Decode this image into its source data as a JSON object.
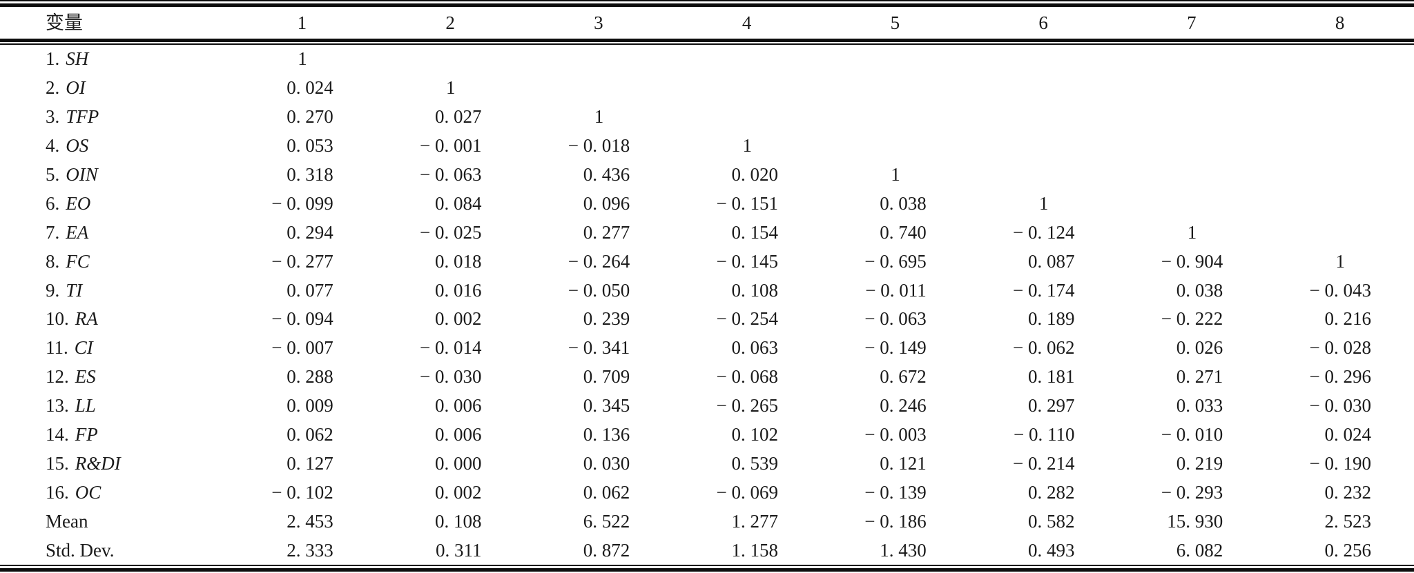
{
  "table": {
    "header": [
      "变量",
      "1",
      "2",
      "3",
      "4",
      "5",
      "6",
      "7",
      "8"
    ],
    "rows": [
      {
        "num": "1.",
        "name": "SH",
        "values": [
          "1",
          "",
          "",
          "",
          "",
          "",
          "",
          ""
        ]
      },
      {
        "num": "2.",
        "name": "OI",
        "values": [
          "0. 024",
          "1",
          "",
          "",
          "",
          "",
          "",
          ""
        ]
      },
      {
        "num": "3.",
        "name": "TFP",
        "values": [
          "0. 270",
          "0. 027",
          "1",
          "",
          "",
          "",
          "",
          ""
        ]
      },
      {
        "num": "4.",
        "name": "OS",
        "values": [
          "0. 053",
          "− 0. 001",
          "− 0. 018",
          "1",
          "",
          "",
          "",
          ""
        ]
      },
      {
        "num": "5.",
        "name": "OIN",
        "values": [
          "0. 318",
          "− 0. 063",
          "0. 436",
          "0. 020",
          "1",
          "",
          "",
          ""
        ]
      },
      {
        "num": "6.",
        "name": "EO",
        "values": [
          "− 0. 099",
          "0. 084",
          "0. 096",
          "− 0. 151",
          "0. 038",
          "1",
          "",
          ""
        ]
      },
      {
        "num": "7.",
        "name": "EA",
        "values": [
          "0. 294",
          "− 0. 025",
          "0. 277",
          "0. 154",
          "0. 740",
          "− 0. 124",
          "1",
          ""
        ]
      },
      {
        "num": "8.",
        "name": "FC",
        "values": [
          "− 0. 277",
          "0. 018",
          "− 0. 264",
          "− 0. 145",
          "− 0. 695",
          "0. 087",
          "− 0. 904",
          "1"
        ]
      },
      {
        "num": "9.",
        "name": "TI",
        "values": [
          "0. 077",
          "0. 016",
          "− 0. 050",
          "0. 108",
          "− 0. 011",
          "− 0. 174",
          "0. 038",
          "− 0. 043"
        ]
      },
      {
        "num": "10.",
        "name": "RA",
        "values": [
          "− 0. 094",
          "0. 002",
          "0. 239",
          "− 0. 254",
          "− 0. 063",
          "0. 189",
          "− 0. 222",
          "0. 216"
        ]
      },
      {
        "num": "11.",
        "name": "CI",
        "values": [
          "− 0. 007",
          "− 0. 014",
          "− 0. 341",
          "0. 063",
          "− 0. 149",
          "− 0. 062",
          "0. 026",
          "− 0. 028"
        ]
      },
      {
        "num": "12.",
        "name": "ES",
        "values": [
          "0. 288",
          "− 0. 030",
          "0. 709",
          "− 0. 068",
          "0. 672",
          "0. 181",
          "0. 271",
          "− 0. 296"
        ]
      },
      {
        "num": "13.",
        "name": "LL",
        "values": [
          "0. 009",
          "0. 006",
          "0. 345",
          "− 0. 265",
          "0. 246",
          "0. 297",
          "0. 033",
          "− 0. 030"
        ]
      },
      {
        "num": "14.",
        "name": "FP",
        "values": [
          "0. 062",
          "0. 006",
          "0. 136",
          "0. 102",
          "− 0. 003",
          "− 0. 110",
          "− 0. 010",
          "0. 024"
        ]
      },
      {
        "num": "15.",
        "name": "R&DI",
        "values": [
          "0. 127",
          "0. 000",
          "0. 030",
          "0. 539",
          "0. 121",
          "− 0. 214",
          "0. 219",
          "− 0. 190"
        ]
      },
      {
        "num": "16.",
        "name": "OC",
        "values": [
          "− 0. 102",
          "0. 002",
          "0. 062",
          "− 0. 069",
          "− 0. 139",
          "0. 282",
          "− 0. 293",
          "0. 232"
        ]
      },
      {
        "num": "",
        "name": "Mean",
        "values": [
          "2. 453",
          "0. 108",
          "6. 522",
          "1. 277",
          "− 0. 186",
          "0. 582",
          "15. 930",
          "2. 523"
        ]
      },
      {
        "num": "",
        "name": "Std. Dev.",
        "values": [
          "2. 333",
          "0. 311",
          "0. 872",
          "1. 158",
          "1. 430",
          "0. 493",
          "6. 082",
          "0. 256"
        ]
      }
    ]
  },
  "colors": {
    "background": "#ffffff",
    "text": "#1a1a1a",
    "rule": "#0d0d0d"
  }
}
